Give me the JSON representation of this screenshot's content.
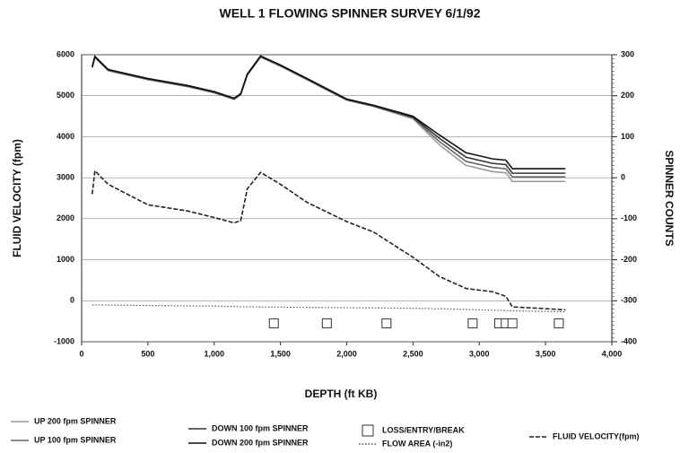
{
  "chart_data": {
    "type": "line",
    "title": "WELL 1 FLOWING SPINNER SURVEY 6/1/92",
    "x_label": "DEPTH (ft KB)",
    "y_label": "FLUID VELOCITY (fpm)",
    "y2_label": "SPINNER COUNTS",
    "x": [
      80,
      100,
      200,
      500,
      800,
      1000,
      1150,
      1200,
      1250,
      1350,
      1500,
      1700,
      2000,
      2200,
      2500,
      2700,
      2900,
      3100,
      3200,
      3250,
      3650
    ],
    "xlim": [
      0,
      4000
    ],
    "xticks": [
      0,
      500,
      {
        "value": 1000,
        "label": "1,000"
      },
      {
        "value": 1500,
        "label": "1,500"
      },
      {
        "value": 2000,
        "label": "2,000"
      },
      {
        "value": 2500,
        "label": "2,500"
      },
      {
        "value": 3000,
        "label": "3,000"
      },
      {
        "value": 3500,
        "label": "3,500"
      },
      {
        "value": 4000,
        "label": "4,000"
      }
    ],
    "ylim": [
      -1000,
      6000
    ],
    "yticks": [
      -1000,
      0,
      1000,
      2000,
      3000,
      4000,
      5000,
      6000
    ],
    "y2lim": [
      -400,
      300
    ],
    "y2ticks": [
      -400,
      -300,
      -200,
      -100,
      0,
      100,
      200,
      300
    ],
    "grid": true,
    "series": [
      {
        "name": "UP 200 fpm SPINNER",
        "color": "#9a9a9a",
        "style": "solid",
        "axis": "y2",
        "values": [
          268,
          293,
          261,
          239,
          222,
          207,
          191,
          202,
          250,
          294,
          272,
          239,
          189,
          174,
          144,
          80,
          30,
          15,
          12,
          -9,
          -9
        ]
      },
      {
        "name": "UP 100 fpm SPINNER",
        "color": "#666666",
        "style": "solid",
        "axis": "y2",
        "values": [
          269,
          294,
          262,
          240,
          223,
          208,
          192,
          203,
          251,
          295,
          273,
          240,
          190,
          175,
          146,
          88,
          40,
          25,
          22,
          2,
          2
        ]
      },
      {
        "name": "DOWN 100 fpm SPINNER",
        "color": "#333333",
        "style": "solid",
        "axis": "y2",
        "values": [
          270,
          295,
          263,
          241,
          224,
          209,
          193,
          204,
          252,
          296,
          274,
          241,
          191,
          176,
          148,
          96,
          50,
          35,
          32,
          11,
          11
        ]
      },
      {
        "name": "DOWN 200 fpm SPINNER",
        "color": "#111111",
        "style": "solid",
        "axis": "y2",
        "values": [
          271,
          296,
          264,
          242,
          225,
          210,
          194,
          205,
          253,
          297,
          275,
          242,
          192,
          177,
          150,
          104,
          61,
          46,
          43,
          22,
          22
        ]
      },
      {
        "name": "LOSS/ENTRY/BREAK",
        "color": "#333333",
        "style": "marker",
        "x": [
          1450,
          1850,
          2300,
          2950,
          3150,
          3200,
          3250,
          3600
        ],
        "values": [
          -550,
          -550,
          -550,
          -550,
          -550,
          -550,
          -550,
          -550
        ]
      },
      {
        "name": "FLOW AREA (-in2)",
        "color": "#555555",
        "style": "dotted",
        "values": [
          -100,
          -100,
          -105,
          -115,
          -125,
          -130,
          -140,
          -145,
          -145,
          -150,
          -155,
          -160,
          -170,
          -175,
          -185,
          -195,
          -210,
          -230,
          -240,
          -245,
          -270
        ]
      },
      {
        "name": "FLUID VELOCITY(fpm)",
        "color": "#222222",
        "style": "dashed",
        "values": [
          2600,
          3170,
          2840,
          2340,
          2190,
          2030,
          1900,
          1950,
          2730,
          3130,
          2840,
          2400,
          1930,
          1680,
          1060,
          590,
          300,
          220,
          110,
          -150,
          -220
        ]
      }
    ]
  }
}
